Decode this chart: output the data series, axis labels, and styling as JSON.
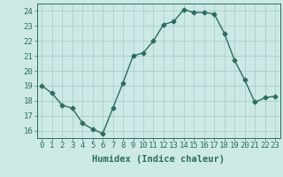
{
  "x": [
    0,
    1,
    2,
    3,
    4,
    5,
    6,
    7,
    8,
    9,
    10,
    11,
    12,
    13,
    14,
    15,
    16,
    17,
    18,
    19,
    20,
    21,
    22,
    23
  ],
  "y": [
    19.0,
    18.5,
    17.7,
    17.5,
    16.5,
    16.1,
    15.8,
    17.5,
    19.2,
    21.0,
    21.2,
    22.0,
    23.1,
    23.3,
    24.1,
    23.9,
    23.9,
    23.8,
    22.5,
    20.7,
    19.4,
    17.9,
    18.2,
    18.3
  ],
  "line_color": "#2e6b5e",
  "marker": "D",
  "marker_size": 2.5,
  "bg_color": "#cce9e5",
  "grid_color": "#aacfcc",
  "xlabel": "Humidex (Indice chaleur)",
  "xlim": [
    -0.5,
    23.5
  ],
  "ylim": [
    15.5,
    24.5
  ],
  "xtick_labels": [
    "0",
    "1",
    "2",
    "3",
    "4",
    "5",
    "6",
    "7",
    "8",
    "9",
    "10",
    "11",
    "12",
    "13",
    "14",
    "15",
    "16",
    "17",
    "18",
    "19",
    "20",
    "21",
    "22",
    "23"
  ],
  "yticks": [
    16,
    17,
    18,
    19,
    20,
    21,
    22,
    23,
    24
  ],
  "xlabel_fontsize": 7.5,
  "tick_fontsize": 6.5,
  "line_width": 1.0
}
